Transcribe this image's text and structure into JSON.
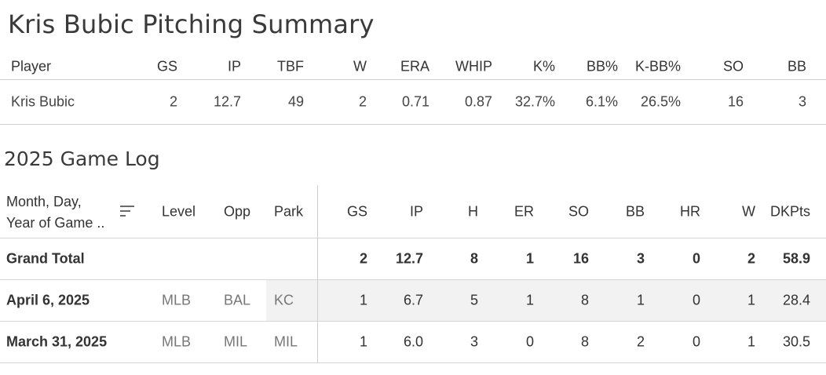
{
  "title": "Kris Bubic Pitching Summary",
  "summary": {
    "headers": [
      "Player",
      "GS",
      "IP",
      "TBF",
      "W",
      "ERA",
      "WHIP",
      "K%",
      "BB%",
      "K-BB%",
      "SO",
      "BB"
    ],
    "row": [
      "Kris Bubic",
      "2",
      "12.7",
      "49",
      "2",
      "0.71",
      "0.87",
      "32.7%",
      "6.1%",
      "26.5%",
      "16",
      "3"
    ]
  },
  "gamelog": {
    "title": "2025 Game Log",
    "headers": {
      "date_line1": "Month, Day,",
      "date_line2": "Year of Game ..",
      "level": "Level",
      "opp": "Opp",
      "park": "Park",
      "gs": "GS",
      "ip": "IP",
      "h": "H",
      "er": "ER",
      "so": "SO",
      "bb": "BB",
      "hr": "HR",
      "w": "W",
      "dkpts": "DKPts"
    },
    "sort_icon": "sort-descending-icon",
    "grand_total": {
      "label": "Grand Total",
      "gs": "2",
      "ip": "12.7",
      "h": "8",
      "er": "1",
      "so": "16",
      "bb": "3",
      "hr": "0",
      "w": "2",
      "dkpts": "58.9"
    },
    "rows": [
      {
        "date": "April 6, 2025",
        "level": "MLB",
        "opp": "BAL",
        "park": "KC",
        "gs": "1",
        "ip": "6.7",
        "h": "5",
        "er": "1",
        "so": "8",
        "bb": "1",
        "hr": "0",
        "w": "1",
        "dkpts": "28.4"
      },
      {
        "date": "March 31, 2025",
        "level": "MLB",
        "opp": "MIL",
        "park": "MIL",
        "gs": "1",
        "ip": "6.0",
        "h": "3",
        "er": "0",
        "so": "8",
        "bb": "2",
        "hr": "0",
        "w": "1",
        "dkpts": "30.5"
      }
    ]
  }
}
